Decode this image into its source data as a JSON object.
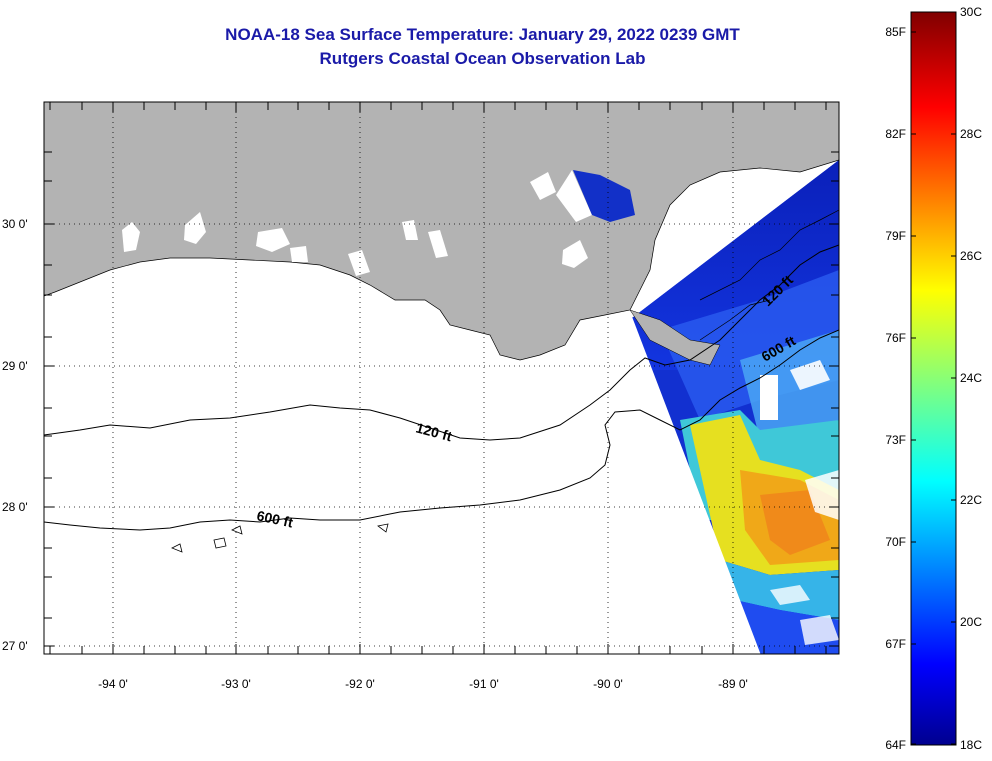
{
  "header": {
    "title_line1": "NOAA-18 Sea Surface Temperature:  January 29, 2022 0239 GMT",
    "title_line2": "Rutgers Coastal Ocean Observation Lab"
  },
  "map": {
    "longitude_ticks": [
      "-94 0'",
      "-93 0'",
      "-92 0'",
      "-91 0'",
      "-90 0'",
      "-89 0'"
    ],
    "latitude_ticks": [
      "30 0'",
      "29 0'",
      "28 0'",
      "27 0'"
    ],
    "contours": [
      {
        "label_text": "120 ft",
        "second_label_text": "120 ft"
      },
      {
        "label_text": "600 ft",
        "second_label_text": "600 ft"
      }
    ],
    "land_color": "#b3b3b3",
    "nodata_color": "#ffffff"
  },
  "colorbar": {
    "celsius_ticks": [
      "30C",
      "28C",
      "26C",
      "24C",
      "22C",
      "20C",
      "18C"
    ],
    "fahrenheit_ticks": [
      "85F",
      "82F",
      "79F",
      "76F",
      "73F",
      "70F",
      "67F",
      "64F"
    ],
    "min_celsius": 18,
    "max_celsius": 30,
    "colormap": "jet"
  }
}
